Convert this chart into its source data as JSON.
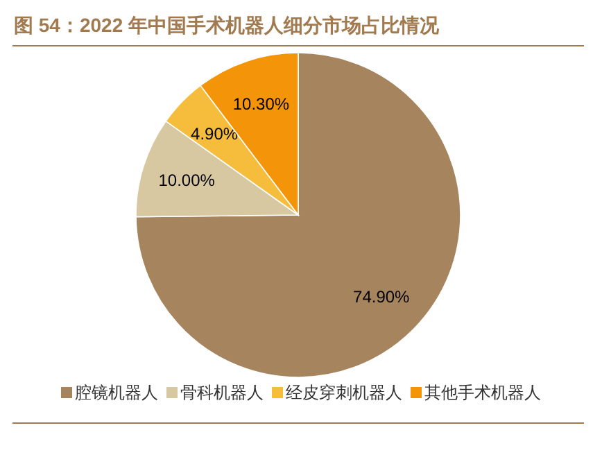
{
  "chart_data": {
    "type": "pie",
    "title": "图 54：2022 年中国手术机器人细分市场占比情况",
    "categories": [
      "腔镜机器人",
      "骨科机器人",
      "经皮穿刺机器人",
      "其他手术机器人"
    ],
    "values": [
      74.9,
      10.0,
      4.9,
      10.3
    ],
    "value_labels": [
      "74.90%",
      "10.00%",
      "4.90%",
      "10.30%"
    ],
    "colors": [
      "#a6845e",
      "#d7c8a2",
      "#f6bd3c",
      "#f49509"
    ],
    "legend": "bottom"
  }
}
